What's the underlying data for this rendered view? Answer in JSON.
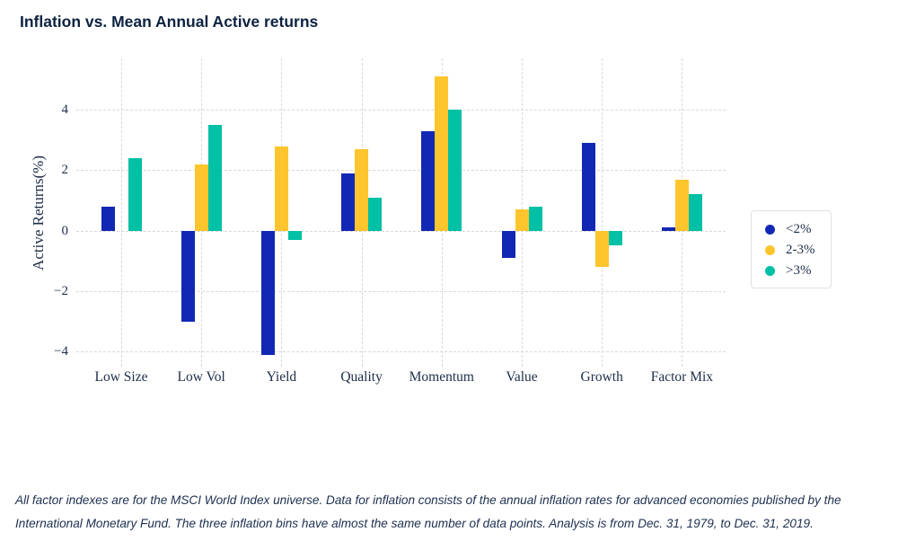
{
  "title": "Inflation vs. Mean Annual Active returns",
  "colors": {
    "title_navy": "#0d2240",
    "axis_text": "#1e2d49",
    "grid": "#d9d9d9",
    "legend_border": "#e2e2e2",
    "series_blue": "#1228b4",
    "series_yellow": "#fec52d",
    "series_teal": "#00c0a5"
  },
  "chart_data": {
    "type": "bar",
    "title": "Inflation vs. Mean Annual Active returns",
    "categories": [
      "Low Size",
      "Low Vol",
      "Yield",
      "Quality",
      "Momentum",
      "Value",
      "Growth",
      "Factor Mix"
    ],
    "series": [
      {
        "name": "<2%",
        "color": "#1228b4",
        "values": [
          0.8,
          -3.0,
          -4.1,
          1.9,
          3.3,
          -0.9,
          2.9,
          0.1
        ]
      },
      {
        "name": "2-3%",
        "color": "#fec52d",
        "values": [
          0.0,
          2.2,
          2.8,
          2.7,
          5.1,
          0.7,
          -1.2,
          1.7
        ]
      },
      {
        "name": ">3%",
        "color": "#00c0a5",
        "values": [
          2.4,
          3.5,
          -0.3,
          1.1,
          4.0,
          0.8,
          -0.5,
          1.2
        ]
      }
    ],
    "xlabel": "",
    "ylabel": "Active Returns(%)",
    "yticks": [
      4,
      2,
      0,
      -2,
      -4
    ],
    "ylim": [
      -4.5,
      5.7
    ],
    "grid": true,
    "grid_style": "dashed",
    "legend_position": "right"
  },
  "footnote": {
    "lines": [
      "All factor indexes are for the MSCI World Index universe. Data for inflation consists of the annual inflation rates for advanced economies published by the",
      "International Monetary Fund. The three inflation bins have almost the same number of data points. Analysis is from Dec. 31, 1979, to Dec. 31, 2019."
    ]
  }
}
